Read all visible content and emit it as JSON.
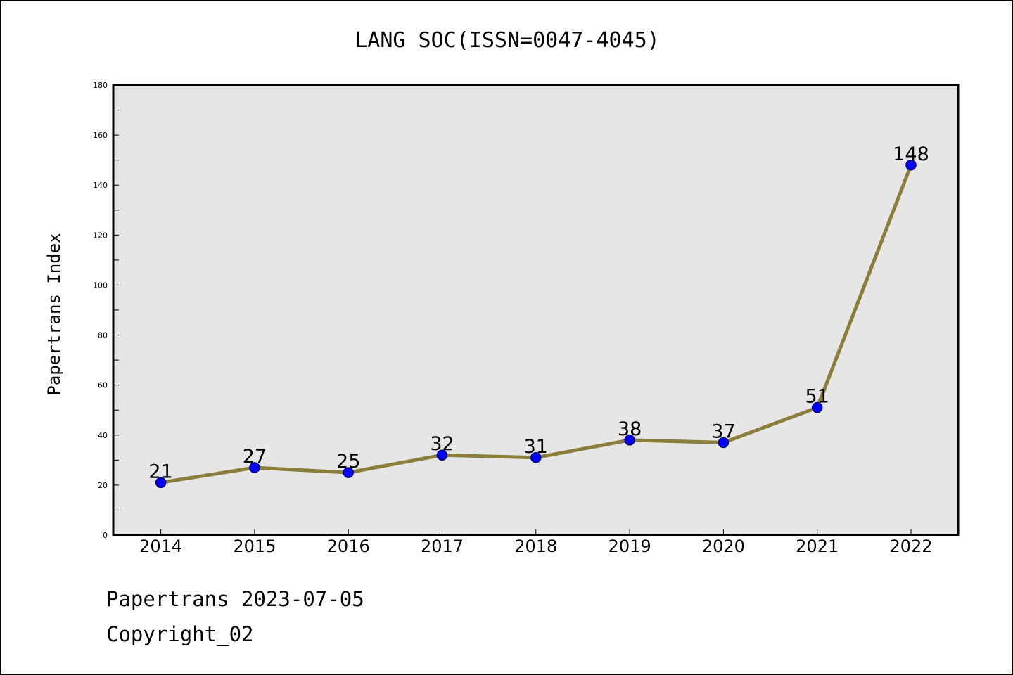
{
  "chart_data": {
    "type": "line",
    "title": "LANG SOC(ISSN=0047-4045)",
    "xlabel": "",
    "ylabel": "Papertrans Index",
    "categories": [
      "2014",
      "2015",
      "2016",
      "2017",
      "2018",
      "2019",
      "2020",
      "2021",
      "2022"
    ],
    "values": [
      21,
      27,
      25,
      32,
      31,
      38,
      37,
      51,
      148
    ],
    "data_labels": [
      "21",
      "27",
      "25",
      "32",
      "31",
      "38",
      "37",
      "51",
      "148"
    ],
    "ylim": [
      0,
      180
    ],
    "yticks": [
      0,
      20,
      40,
      60,
      80,
      100,
      120,
      140,
      160,
      180
    ],
    "grid": false,
    "legend": "none",
    "colors": {
      "line": "#8b7d3a",
      "marker_fill": "#0000ff",
      "marker_edge": "#000080",
      "plot_background": "#e6e6e6",
      "axes": "#000000"
    }
  },
  "footer": {
    "date_line": "Papertrans 2023-07-05",
    "copyright_line": "Copyright_02"
  }
}
